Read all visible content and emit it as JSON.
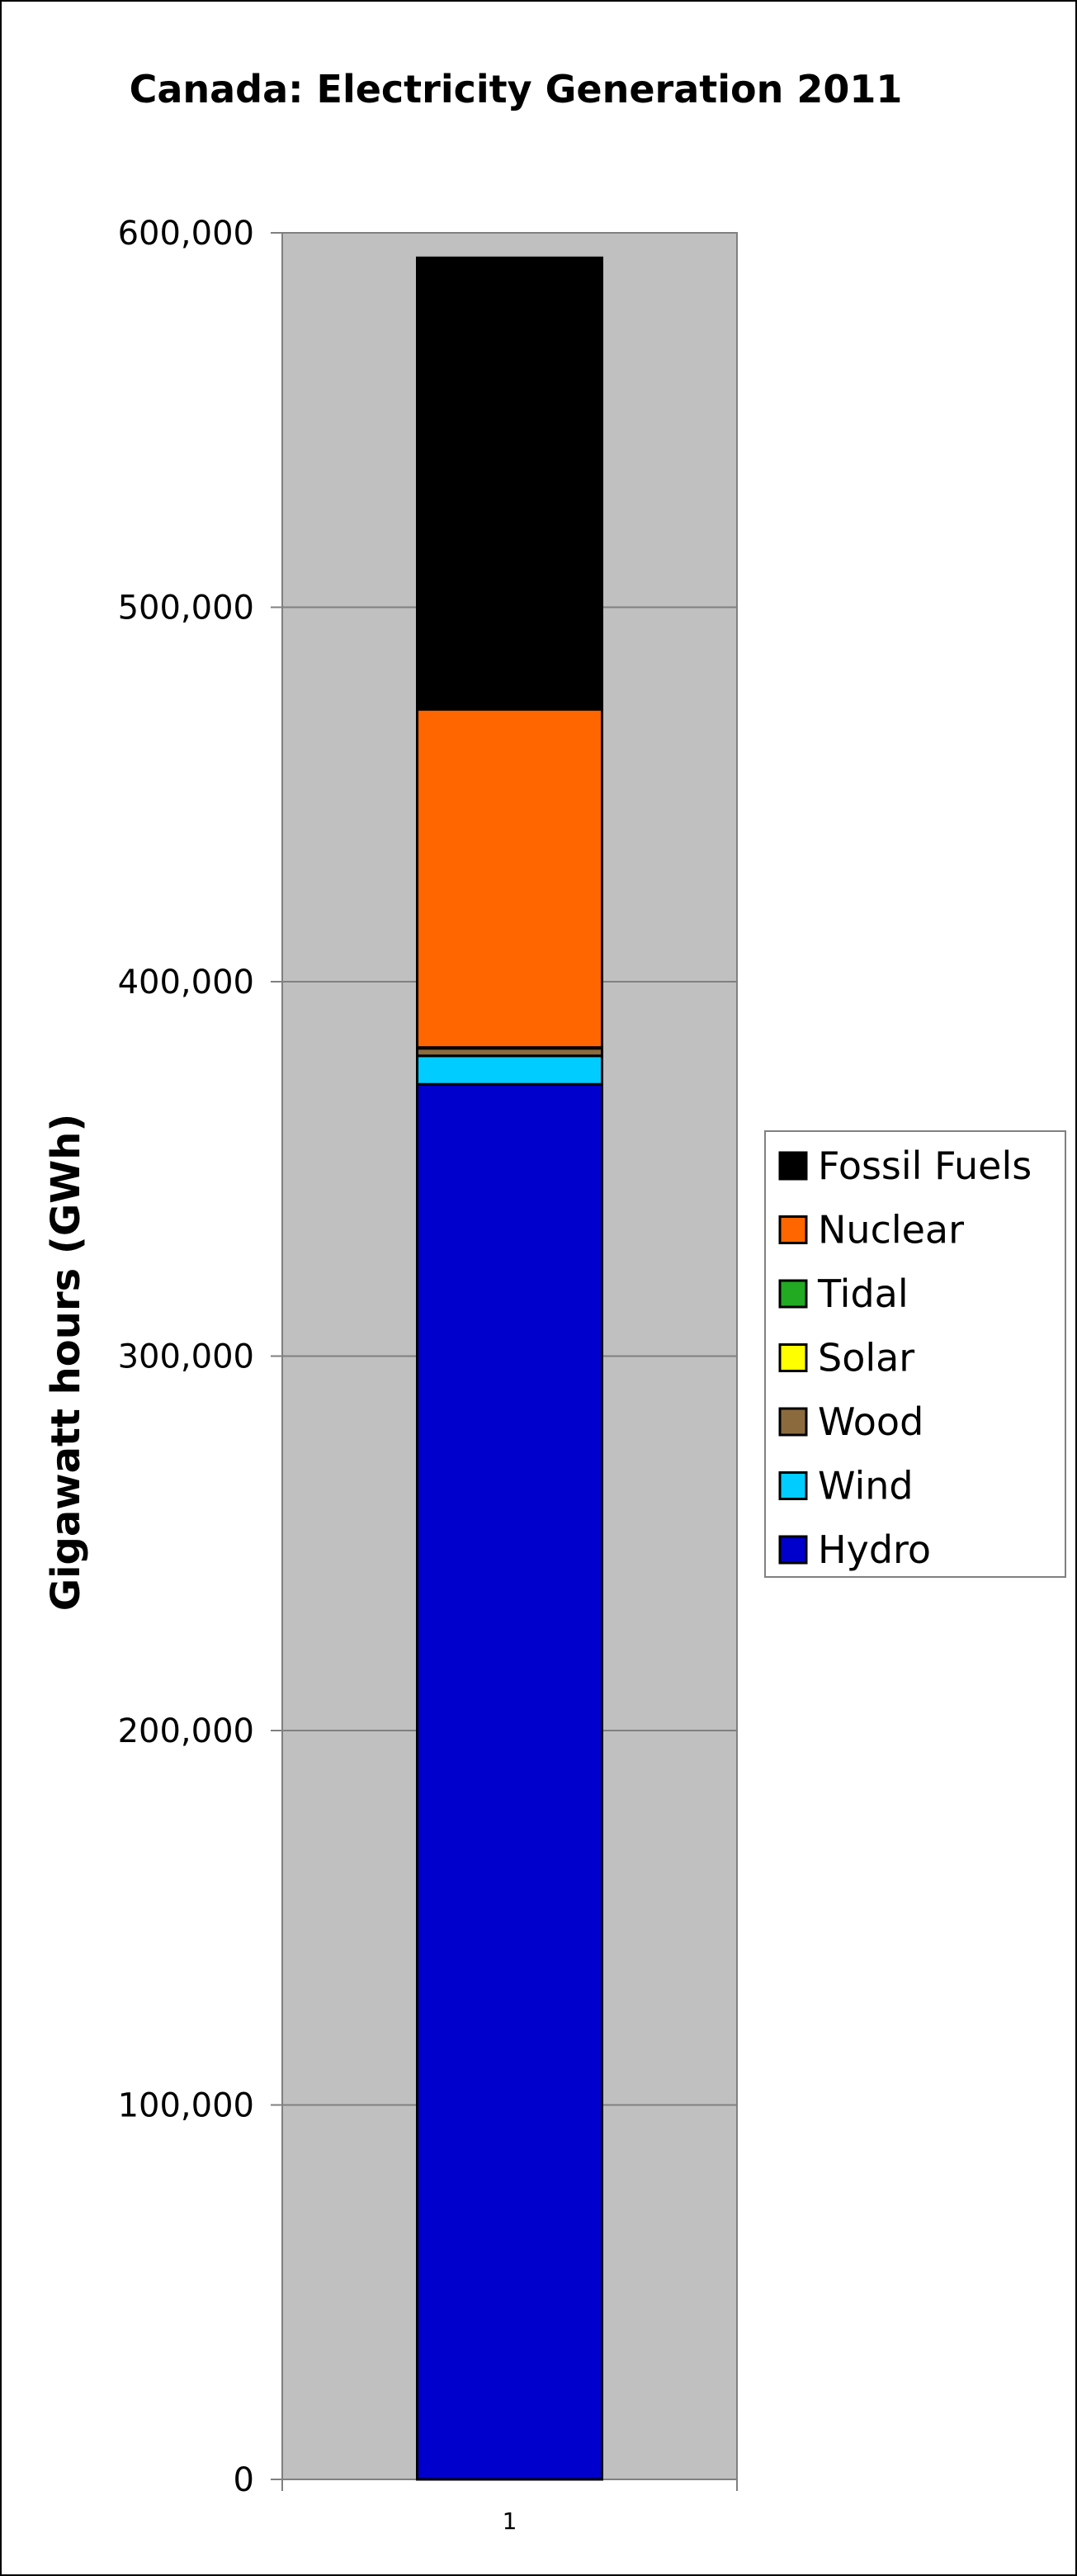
{
  "chart_data": {
    "type": "bar",
    "stacked": true,
    "title": "Canada: Electricity Generation 2011",
    "xlabel": "",
    "ylabel": "Gigawatt hours (GWh)",
    "categories": [
      "1"
    ],
    "ylim": [
      0,
      600000
    ],
    "yticks": [
      0,
      100000,
      200000,
      300000,
      400000,
      500000,
      600000
    ],
    "ytick_labels": [
      "0",
      "100,000",
      "200,000",
      "300,000",
      "400,000",
      "500,000",
      "600,000"
    ],
    "grid": true,
    "legend_position": "right",
    "plot_background": "#c0c0c0",
    "series": [
      {
        "name": "Hydro",
        "values": [
          372600
        ],
        "color": "#0000cc"
      },
      {
        "name": "Wind",
        "values": [
          7600
        ],
        "color": "#00ccff"
      },
      {
        "name": "Wood",
        "values": [
          2000
        ],
        "color": "#8b6b3e"
      },
      {
        "name": "Solar",
        "values": [
          200
        ],
        "color": "#ffff00"
      },
      {
        "name": "Tidal",
        "values": [
          30
        ],
        "color": "#22aa22"
      },
      {
        "name": "Nuclear",
        "values": [
          90300
        ],
        "color": "#ff6600"
      },
      {
        "name": "Fossil Fuels",
        "values": [
          120600
        ],
        "color": "#000000"
      }
    ],
    "legend_order": [
      "Fossil Fuels",
      "Nuclear",
      "Tidal",
      "Solar",
      "Wood",
      "Wind",
      "Hydro"
    ]
  }
}
